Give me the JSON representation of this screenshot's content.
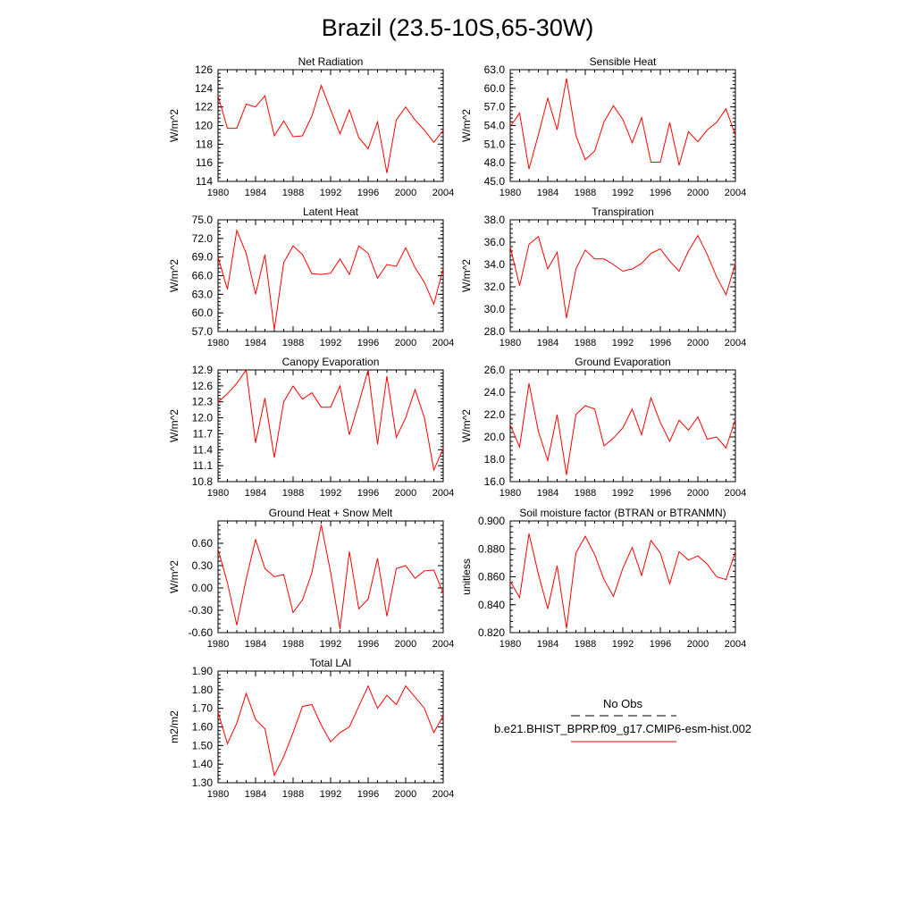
{
  "figure": {
    "title": "Brazil (23.5-10S,65-30W)",
    "legend": {
      "obs_label": "No Obs",
      "model_label": "b.e21.BHIST_BPRP.f09_g17.CMIP6-esm-hist.002",
      "model_color": "#ff0000"
    }
  },
  "chart_data": [
    {
      "type": "line",
      "title": "Net Radiation",
      "ylabel": "W/m^2",
      "xlim": [
        1980,
        2004
      ],
      "ylim": [
        114,
        126
      ],
      "xticks": [
        1980,
        1984,
        1988,
        1992,
        1996,
        2000,
        2004
      ],
      "xtick_labels": [
        "1980",
        "1984",
        "1988",
        "1992",
        "1996",
        "2000",
        "2004"
      ],
      "yticks": [
        114,
        116,
        118,
        120,
        122,
        124,
        126
      ],
      "ytick_labels": [
        "114",
        "116",
        "118",
        "120",
        "122",
        "124",
        "126"
      ],
      "color": "#ff0000",
      "x": [
        1980,
        1981,
        1982,
        1983,
        1984,
        1985,
        1986,
        1987,
        1988,
        1989,
        1990,
        1991,
        1992,
        1993,
        1994,
        1995,
        1996,
        1997,
        1998,
        1999,
        2000,
        2001,
        2002,
        2003,
        2004
      ],
      "values": [
        123.2,
        119.7,
        119.7,
        122.3,
        122.0,
        123.2,
        118.9,
        120.5,
        118.8,
        118.9,
        121.0,
        124.3,
        121.7,
        119.1,
        121.7,
        118.7,
        117.5,
        120.4,
        114.9,
        120.6,
        122.0,
        120.6,
        119.5,
        118.2,
        119.5
      ]
    },
    {
      "type": "line",
      "title": "Sensible Heat",
      "ylabel": "W/m^2",
      "xlim": [
        1980,
        2004
      ],
      "ylim": [
        45,
        63
      ],
      "xticks": [
        1980,
        1984,
        1988,
        1992,
        1996,
        2000,
        2004
      ],
      "xtick_labels": [
        "1980",
        "1984",
        "1988",
        "1992",
        "1996",
        "2000",
        "2004"
      ],
      "yticks": [
        45,
        48,
        51,
        54,
        57,
        60,
        63
      ],
      "ytick_labels": [
        "45.0",
        "48.0",
        "51.0",
        "54.0",
        "57.0",
        "60.0",
        "63.0"
      ],
      "color": "#ff0000",
      "x": [
        1980,
        1981,
        1982,
        1983,
        1984,
        1985,
        1986,
        1987,
        1988,
        1989,
        1990,
        1991,
        1992,
        1993,
        1994,
        1995,
        1996,
        1997,
        1998,
        1999,
        2000,
        2001,
        2002,
        2003,
        2004
      ],
      "values": [
        53.8,
        56.0,
        47.0,
        52.5,
        58.4,
        53.3,
        61.6,
        52.4,
        48.5,
        49.9,
        54.6,
        57.2,
        55.0,
        51.2,
        55.3,
        48.1,
        48.1,
        54.5,
        47.6,
        53.0,
        51.4,
        53.3,
        54.5,
        56.7,
        52.4
      ]
    },
    {
      "type": "line",
      "title": "Latent Heat",
      "ylabel": "W/m^2",
      "xlim": [
        1980,
        2004
      ],
      "ylim": [
        57,
        75
      ],
      "xticks": [
        1980,
        1984,
        1988,
        1992,
        1996,
        2000,
        2004
      ],
      "xtick_labels": [
        "1980",
        "1984",
        "1988",
        "1992",
        "1996",
        "2000",
        "2004"
      ],
      "yticks": [
        57,
        60,
        63,
        66,
        69,
        72,
        75
      ],
      "ytick_labels": [
        "57.0",
        "60.0",
        "63.0",
        "66.0",
        "69.0",
        "72.0",
        "75.0"
      ],
      "color": "#ff0000",
      "x": [
        1980,
        1981,
        1982,
        1983,
        1984,
        1985,
        1986,
        1987,
        1988,
        1989,
        1990,
        1991,
        1992,
        1993,
        1994,
        1995,
        1996,
        1997,
        1998,
        1999,
        2000,
        2001,
        2002,
        2003,
        2004
      ],
      "values": [
        69.0,
        63.8,
        73.3,
        69.6,
        63.0,
        69.4,
        57.3,
        68.1,
        70.8,
        69.4,
        66.3,
        66.2,
        66.4,
        68.7,
        66.2,
        70.8,
        69.6,
        65.6,
        67.8,
        67.5,
        70.5,
        67.3,
        64.9,
        61.4,
        67.2
      ]
    },
    {
      "type": "line",
      "title": "Transpiration",
      "ylabel": "W/m^2",
      "xlim": [
        1980,
        2004
      ],
      "ylim": [
        28,
        38
      ],
      "xticks": [
        1980,
        1984,
        1988,
        1992,
        1996,
        2000,
        2004
      ],
      "xtick_labels": [
        "1980",
        "1984",
        "1988",
        "1992",
        "1996",
        "2000",
        "2004"
      ],
      "yticks": [
        28,
        30,
        32,
        34,
        36,
        38
      ],
      "ytick_labels": [
        "28.0",
        "30.0",
        "32.0",
        "34.0",
        "36.0",
        "38.0"
      ],
      "color": "#ff0000",
      "x": [
        1980,
        1981,
        1982,
        1983,
        1984,
        1985,
        1986,
        1987,
        1988,
        1989,
        1990,
        1991,
        1992,
        1993,
        1994,
        1995,
        1996,
        1997,
        1998,
        1999,
        2000,
        2001,
        2002,
        2003,
        2004
      ],
      "values": [
        35.6,
        32.1,
        35.8,
        36.5,
        33.6,
        35.1,
        29.2,
        33.6,
        35.3,
        34.5,
        34.5,
        34.0,
        33.4,
        33.6,
        34.1,
        35.0,
        35.4,
        34.3,
        33.4,
        35.2,
        36.6,
        34.9,
        32.9,
        31.3,
        34.1
      ]
    },
    {
      "type": "line",
      "title": "Canopy Evaporation",
      "ylabel": "W/m^2",
      "xlim": [
        1980,
        2004
      ],
      "ylim": [
        10.8,
        12.9
      ],
      "xticks": [
        1980,
        1984,
        1988,
        1992,
        1996,
        2000,
        2004
      ],
      "xtick_labels": [
        "1980",
        "1984",
        "1988",
        "1992",
        "1996",
        "2000",
        "2004"
      ],
      "yticks": [
        10.8,
        11.1,
        11.4,
        11.7,
        12.0,
        12.3,
        12.6,
        12.9
      ],
      "ytick_labels": [
        "10.8",
        "11.1",
        "11.4",
        "11.7",
        "12.0",
        "12.3",
        "12.6",
        "12.9"
      ],
      "color": "#ff0000",
      "x": [
        1980,
        1981,
        1982,
        1983,
        1984,
        1985,
        1986,
        1987,
        1988,
        1989,
        1990,
        1991,
        1992,
        1993,
        1994,
        1995,
        1996,
        1997,
        1998,
        1999,
        2000,
        2001,
        2002,
        2003,
        2004
      ],
      "values": [
        12.3,
        12.45,
        12.65,
        12.9,
        11.53,
        12.37,
        11.25,
        12.3,
        12.6,
        12.35,
        12.47,
        12.2,
        12.2,
        12.6,
        11.68,
        12.27,
        12.9,
        11.5,
        12.78,
        11.63,
        12.0,
        12.53,
        12.0,
        11.02,
        11.42
      ]
    },
    {
      "type": "line",
      "title": "Ground Evaporation",
      "ylabel": "W/m^2",
      "xlim": [
        1980,
        2004
      ],
      "ylim": [
        16,
        26
      ],
      "xticks": [
        1980,
        1984,
        1988,
        1992,
        1996,
        2000,
        2004
      ],
      "xtick_labels": [
        "1980",
        "1984",
        "1988",
        "1992",
        "1996",
        "2000",
        "2004"
      ],
      "yticks": [
        16,
        18,
        20,
        22,
        24,
        26
      ],
      "ytick_labels": [
        "16.0",
        "18.0",
        "20.0",
        "22.0",
        "24.0",
        "26.0"
      ],
      "color": "#ff0000",
      "x": [
        1980,
        1981,
        1982,
        1983,
        1984,
        1985,
        1986,
        1987,
        1988,
        1989,
        1990,
        1991,
        1992,
        1993,
        1994,
        1995,
        1996,
        1997,
        1998,
        1999,
        2000,
        2001,
        2002,
        2003,
        2004
      ],
      "values": [
        21.1,
        19.1,
        24.8,
        20.5,
        17.9,
        22.0,
        16.6,
        22.0,
        22.8,
        22.5,
        19.2,
        19.9,
        20.8,
        22.5,
        20.2,
        23.5,
        21.3,
        19.6,
        21.5,
        20.6,
        21.8,
        19.8,
        20.0,
        19.0,
        21.6
      ]
    },
    {
      "type": "line",
      "title": "Ground Heat + Snow Melt",
      "ylabel": "W/m^2",
      "xlim": [
        1980,
        2004
      ],
      "ylim": [
        -0.6,
        0.9
      ],
      "xticks": [
        1980,
        1984,
        1988,
        1992,
        1996,
        2000,
        2004
      ],
      "xtick_labels": [
        "1980",
        "1984",
        "1988",
        "1992",
        "1996",
        "2000",
        "2004"
      ],
      "yticks": [
        -0.6,
        -0.3,
        0.0,
        0.3,
        0.6
      ],
      "ytick_labels": [
        "-0.60",
        "-0.30",
        "0.00",
        "0.30",
        "0.60"
      ],
      "color": "#ff0000",
      "x": [
        1980,
        1981,
        1982,
        1983,
        1984,
        1985,
        1986,
        1987,
        1988,
        1989,
        1990,
        1991,
        1992,
        1993,
        1994,
        1995,
        1996,
        1997,
        1998,
        1999,
        2000,
        2001,
        2002,
        2003,
        2004
      ],
      "values": [
        0.52,
        0.07,
        -0.5,
        0.12,
        0.65,
        0.26,
        0.15,
        0.18,
        -0.33,
        -0.16,
        0.2,
        0.85,
        0.21,
        -0.55,
        0.49,
        -0.28,
        -0.15,
        0.4,
        -0.38,
        0.26,
        0.3,
        0.13,
        0.23,
        0.24,
        -0.07
      ]
    },
    {
      "type": "line",
      "title": "Soil moisture factor (BTRAN or BTRANMN)",
      "ylabel": "unitless",
      "xlim": [
        1980,
        2004
      ],
      "ylim": [
        0.82,
        0.9
      ],
      "xticks": [
        1980,
        1984,
        1988,
        1992,
        1996,
        2000,
        2004
      ],
      "xtick_labels": [
        "1980",
        "1984",
        "1988",
        "1992",
        "1996",
        "2000",
        "2004"
      ],
      "yticks": [
        0.82,
        0.84,
        0.86,
        0.88,
        0.9
      ],
      "ytick_labels": [
        "0.820",
        "0.840",
        "0.860",
        "0.880",
        "0.900"
      ],
      "color": "#ff0000",
      "x": [
        1980,
        1981,
        1982,
        1983,
        1984,
        1985,
        1986,
        1987,
        1988,
        1989,
        1990,
        1991,
        1992,
        1993,
        1994,
        1995,
        1996,
        1997,
        1998,
        1999,
        2000,
        2001,
        2002,
        2003,
        2004
      ],
      "values": [
        0.857,
        0.845,
        0.891,
        0.862,
        0.837,
        0.868,
        0.823,
        0.877,
        0.889,
        0.876,
        0.858,
        0.846,
        0.866,
        0.881,
        0.861,
        0.886,
        0.877,
        0.855,
        0.878,
        0.872,
        0.875,
        0.869,
        0.86,
        0.858,
        0.878
      ]
    },
    {
      "type": "line",
      "title": "Total LAI",
      "ylabel": "m2/m2",
      "xlim": [
        1980,
        2004
      ],
      "ylim": [
        1.3,
        1.9
      ],
      "xticks": [
        1980,
        1984,
        1988,
        1992,
        1996,
        2000,
        2004
      ],
      "xtick_labels": [
        "1980",
        "1984",
        "1988",
        "1992",
        "1996",
        "2000",
        "2004"
      ],
      "yticks": [
        1.3,
        1.4,
        1.5,
        1.6,
        1.7,
        1.8,
        1.9
      ],
      "ytick_labels": [
        "1.30",
        "1.40",
        "1.50",
        "1.60",
        "1.70",
        "1.80",
        "1.90"
      ],
      "color": "#ff0000",
      "x": [
        1980,
        1981,
        1982,
        1983,
        1984,
        1985,
        1986,
        1987,
        1988,
        1989,
        1990,
        1991,
        1992,
        1993,
        1994,
        1995,
        1996,
        1997,
        1998,
        1999,
        2000,
        2001,
        2002,
        2003,
        2004
      ],
      "values": [
        1.68,
        1.51,
        1.62,
        1.78,
        1.64,
        1.59,
        1.34,
        1.44,
        1.57,
        1.71,
        1.72,
        1.61,
        1.52,
        1.57,
        1.6,
        1.71,
        1.82,
        1.7,
        1.77,
        1.72,
        1.82,
        1.76,
        1.7,
        1.57,
        1.66
      ]
    }
  ]
}
